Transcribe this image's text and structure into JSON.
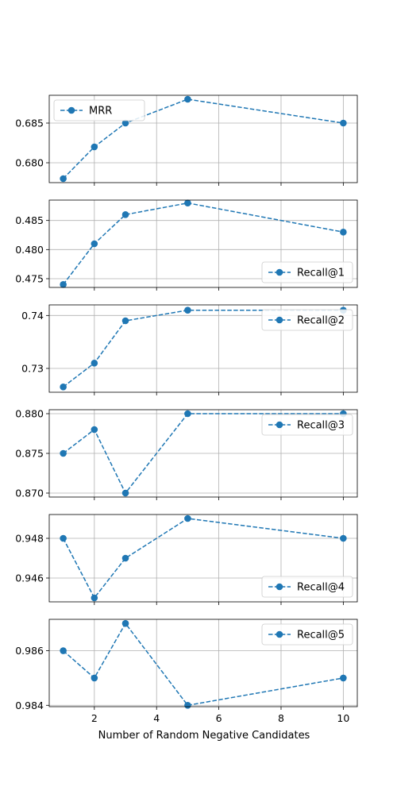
{
  "colors": {
    "series": "#1f77b4",
    "grid": "#b0b0b0",
    "frame": "#000000"
  },
  "chart_data": {
    "type": "line",
    "xlabel": "Number of Random Negative Candidates",
    "x": [
      1,
      2,
      3,
      5,
      10
    ],
    "xlim": [
      0.55,
      10.45
    ],
    "xticks": [
      2,
      4,
      6,
      8,
      10
    ],
    "xtick_labels": [
      "2",
      "4",
      "6",
      "8",
      "10"
    ],
    "grid": true,
    "line_style": "dashed",
    "marker": "circle",
    "panels": [
      {
        "name": "MRR",
        "values": [
          0.678,
          0.682,
          0.685,
          0.688,
          0.685
        ],
        "ylim": [
          0.6775,
          0.6885
        ],
        "yticks": [
          0.68,
          0.685
        ],
        "ytick_labels": [
          "0.680",
          "0.685"
        ],
        "legend_position": "upper-left"
      },
      {
        "name": "Recall@1",
        "values": [
          0.474,
          0.481,
          0.486,
          0.488,
          0.483
        ],
        "ylim": [
          0.4735,
          0.4885
        ],
        "yticks": [
          0.475,
          0.48,
          0.485
        ],
        "ytick_labels": [
          "0.475",
          "0.480",
          "0.485"
        ],
        "legend_position": "lower-right"
      },
      {
        "name": "Recall@2",
        "values": [
          0.7265,
          0.731,
          0.739,
          0.741,
          0.741
        ],
        "ylim": [
          0.7255,
          0.742
        ],
        "yticks": [
          0.73,
          0.74
        ],
        "ytick_labels": [
          "0.73",
          "0.74"
        ],
        "legend_position": "upper-right"
      },
      {
        "name": "Recall@3",
        "values": [
          0.875,
          0.878,
          0.87,
          0.88,
          0.88
        ],
        "ylim": [
          0.8695,
          0.8805
        ],
        "yticks": [
          0.87,
          0.875,
          0.88
        ],
        "ytick_labels": [
          "0.870",
          "0.875",
          "0.880"
        ],
        "legend_position": "upper-right"
      },
      {
        "name": "Recall@4",
        "values": [
          0.948,
          0.945,
          0.947,
          0.949,
          0.948
        ],
        "ylim": [
          0.9448,
          0.9492
        ],
        "yticks": [
          0.946,
          0.948
        ],
        "ytick_labels": [
          "0.946",
          "0.948"
        ],
        "legend_position": "lower-right"
      },
      {
        "name": "Recall@5",
        "values": [
          0.986,
          0.985,
          0.987,
          0.984,
          0.985
        ],
        "ylim": [
          0.98395,
          0.98715
        ],
        "yticks": [
          0.984,
          0.986
        ],
        "ytick_labels": [
          "0.984",
          "0.986"
        ],
        "legend_position": "upper-right"
      }
    ]
  }
}
